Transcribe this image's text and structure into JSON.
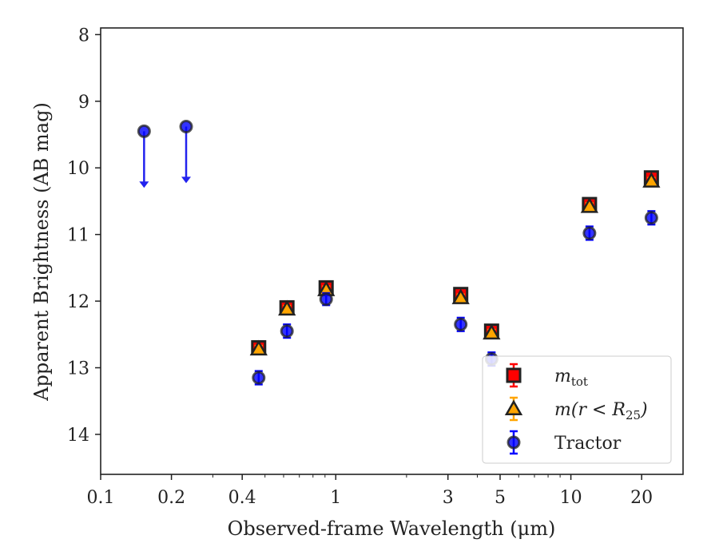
{
  "chart_data": {
    "type": "scatter",
    "xlabel": "Observed-frame Wavelength (μm)",
    "ylabel": "Apparent Brightness (AB mag)",
    "x_scale": "log",
    "xlim": [
      0.1,
      30
    ],
    "ylim": [
      14.6,
      7.9
    ],
    "y_inverted": true,
    "x_ticks": [
      {
        "value": 0.1,
        "label": "0.1"
      },
      {
        "value": 0.2,
        "label": "0.2"
      },
      {
        "value": 0.4,
        "label": "0.4"
      },
      {
        "value": 1,
        "label": "1"
      },
      {
        "value": 3,
        "label": "3"
      },
      {
        "value": 5,
        "label": "5"
      },
      {
        "value": 10,
        "label": "10"
      },
      {
        "value": 20,
        "label": "20"
      }
    ],
    "y_ticks": [
      {
        "value": 8,
        "label": "8"
      },
      {
        "value": 9,
        "label": "9"
      },
      {
        "value": 10,
        "label": "10"
      },
      {
        "value": 11,
        "label": "11"
      },
      {
        "value": 12,
        "label": "12"
      },
      {
        "value": 13,
        "label": "13"
      },
      {
        "value": 14,
        "label": "14"
      }
    ],
    "grid": false,
    "legend_position": "lower-right",
    "series": [
      {
        "name": "m_tot",
        "legend_main": "m",
        "legend_sub": "tot",
        "marker": "square",
        "color": "#ff0000",
        "edge": "#222222",
        "points": [
          {
            "x": 0.47,
            "y": 12.7,
            "err": 0.06
          },
          {
            "x": 0.62,
            "y": 12.1,
            "err": 0.06
          },
          {
            "x": 0.91,
            "y": 11.8,
            "err": 0.06
          },
          {
            "x": 3.4,
            "y": 11.9,
            "err": 0.06
          },
          {
            "x": 4.6,
            "y": 12.45,
            "err": 0.06
          },
          {
            "x": 12.0,
            "y": 10.55,
            "err": 0.07
          },
          {
            "x": 22.0,
            "y": 10.15,
            "err": 0.08
          }
        ]
      },
      {
        "name": "m(r < R25)",
        "legend_main": "m(r < R",
        "legend_sub": "25",
        "legend_tail": ")",
        "marker": "triangle",
        "color": "#ffa500",
        "edge": "#222222",
        "points": [
          {
            "x": 0.47,
            "y": 12.72,
            "err": 0.05
          },
          {
            "x": 0.62,
            "y": 12.12,
            "err": 0.05
          },
          {
            "x": 0.91,
            "y": 11.83,
            "err": 0.05
          },
          {
            "x": 3.4,
            "y": 11.95,
            "err": 0.05
          },
          {
            "x": 4.6,
            "y": 12.48,
            "err": 0.05
          },
          {
            "x": 12.0,
            "y": 10.58,
            "err": 0.05
          },
          {
            "x": 22.0,
            "y": 10.2,
            "err": 0.05
          }
        ]
      },
      {
        "name": "Tractor",
        "marker": "circle",
        "color": "#0000ff",
        "edge": "#222222",
        "points": [
          {
            "x": 0.47,
            "y": 13.15,
            "err": 0.1
          },
          {
            "x": 0.62,
            "y": 12.45,
            "err": 0.1
          },
          {
            "x": 0.91,
            "y": 11.97,
            "err": 0.09
          },
          {
            "x": 3.4,
            "y": 12.35,
            "err": 0.1
          },
          {
            "x": 4.6,
            "y": 12.87,
            "err": 0.1
          },
          {
            "x": 12.0,
            "y": 10.98,
            "err": 0.1
          },
          {
            "x": 22.0,
            "y": 10.75,
            "err": 0.1
          }
        ],
        "upper_limits": [
          {
            "x": 0.153,
            "y": 9.45
          },
          {
            "x": 0.231,
            "y": 9.38
          }
        ]
      }
    ]
  }
}
